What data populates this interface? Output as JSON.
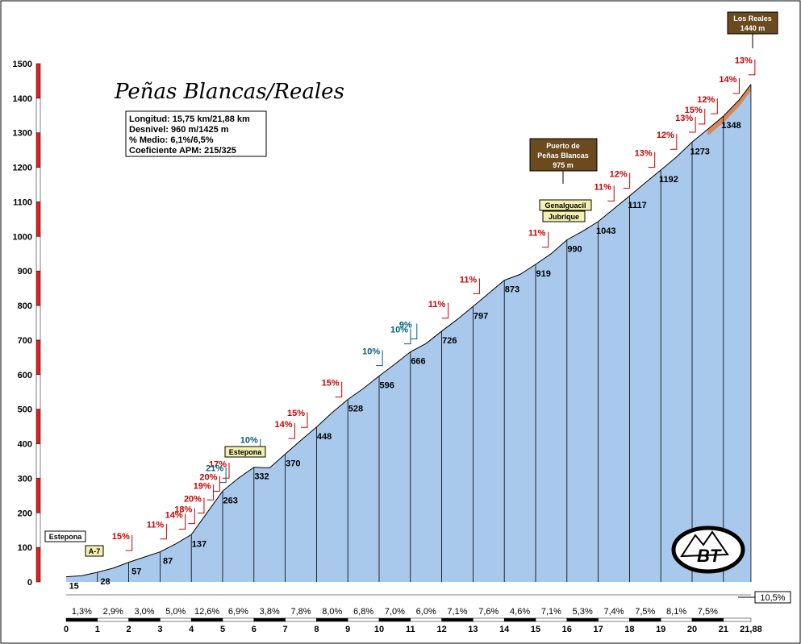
{
  "chart_data": {
    "type": "area",
    "title": "Peñas Blancas/Reales",
    "info": [
      "Longitud: 15,75 km/21,88 km",
      "Desnivel: 960 m/1425 m",
      "% Medio: 6,1%/6,5%",
      "Coeficiente APM: 215/325"
    ],
    "xlim": [
      0,
      21.88
    ],
    "ylim": [
      0,
      1500
    ],
    "x_ticks": [
      "0",
      "1",
      "2",
      "3",
      "4",
      "5",
      "6",
      "7",
      "8",
      "9",
      "10",
      "11",
      "12",
      "13",
      "14",
      "15",
      "16",
      "17",
      "18",
      "19",
      "20",
      "21"
    ],
    "x_end_label": "21,88",
    "y_ticks": [
      "0",
      "100",
      "200",
      "300",
      "400",
      "500",
      "600",
      "700",
      "800",
      "900",
      "1000",
      "1100",
      "1200",
      "1300",
      "1400",
      "1500"
    ],
    "profile": [
      [
        0,
        15
      ],
      [
        0.5,
        18
      ],
      [
        1,
        28
      ],
      [
        1.5,
        40
      ],
      [
        2,
        57
      ],
      [
        2.5,
        72
      ],
      [
        3,
        87
      ],
      [
        3.5,
        110
      ],
      [
        4,
        137
      ],
      [
        4.5,
        200
      ],
      [
        5,
        263
      ],
      [
        5.5,
        300
      ],
      [
        6,
        332
      ],
      [
        6.5,
        330
      ],
      [
        7,
        370
      ],
      [
        7.5,
        410
      ],
      [
        8,
        448
      ],
      [
        8.5,
        490
      ],
      [
        9,
        528
      ],
      [
        9.5,
        560
      ],
      [
        10,
        596
      ],
      [
        10.5,
        630
      ],
      [
        11,
        666
      ],
      [
        11.5,
        690
      ],
      [
        12,
        726
      ],
      [
        12.5,
        760
      ],
      [
        13,
        797
      ],
      [
        13.5,
        835
      ],
      [
        14,
        873
      ],
      [
        14.5,
        890
      ],
      [
        15,
        919
      ],
      [
        15.5,
        950
      ],
      [
        16,
        990
      ],
      [
        16.5,
        1015
      ],
      [
        17,
        1043
      ],
      [
        17.5,
        1080
      ],
      [
        18,
        1117
      ],
      [
        18.5,
        1155
      ],
      [
        19,
        1192
      ],
      [
        19.5,
        1230
      ],
      [
        20,
        1273
      ],
      [
        20.5,
        1310
      ],
      [
        21,
        1348
      ],
      [
        21.5,
        1395
      ],
      [
        21.88,
        1440
      ]
    ],
    "km_altitudes": [
      {
        "x": 0.25,
        "label": "15"
      },
      {
        "x": 1.25,
        "label": "28"
      },
      {
        "x": 2.25,
        "label": "57"
      },
      {
        "x": 3.25,
        "label": "87"
      },
      {
        "x": 4.25,
        "label": "137"
      },
      {
        "x": 5.25,
        "label": "263"
      },
      {
        "x": 6.25,
        "label": "332"
      },
      {
        "x": 7.25,
        "label": "370"
      },
      {
        "x": 8.25,
        "label": "448"
      },
      {
        "x": 9.25,
        "label": "528"
      },
      {
        "x": 10.25,
        "label": "596"
      },
      {
        "x": 11.25,
        "label": "666"
      },
      {
        "x": 12.25,
        "label": "726"
      },
      {
        "x": 13.25,
        "label": "797"
      },
      {
        "x": 14.25,
        "label": "873"
      },
      {
        "x": 15.25,
        "label": "919"
      },
      {
        "x": 16.25,
        "label": "990"
      },
      {
        "x": 17.25,
        "label": "1043"
      },
      {
        "x": 18.25,
        "label": "1117"
      },
      {
        "x": 19.25,
        "label": "1192"
      },
      {
        "x": 20.25,
        "label": "1273"
      },
      {
        "x": 21.25,
        "label": "1348"
      }
    ],
    "segment_gradients": [
      "1,3%",
      "2,9%",
      "3,0%",
      "5,0%",
      "12,6%",
      "6,9%",
      "3,8%",
      "7,8%",
      "8,0%",
      "6,8%",
      "7,0%",
      "6,0%",
      "7,1%",
      "7,6%",
      "4,6%",
      "7,1%",
      "5,3%",
      "7,4%",
      "7,5%",
      "8,1%",
      "7,5%"
    ],
    "last_segment_gradient": "10,5%",
    "ramp_labels": [
      {
        "x": 1.9,
        "y": 15,
        "label": "15%",
        "color": "#cc0000"
      },
      {
        "x": 3.0,
        "y": 11,
        "label": "11%",
        "color": "#cc0000"
      },
      {
        "x": 3.6,
        "y": 14,
        "label": "14%",
        "color": "#cc0000"
      },
      {
        "x": 3.9,
        "y": 18,
        "label": "18%",
        "color": "#cc0000"
      },
      {
        "x": 4.2,
        "y": 20,
        "label": "20%",
        "color": "#cc0000"
      },
      {
        "x": 4.5,
        "y": 19,
        "label": "19%",
        "color": "#cc0000"
      },
      {
        "x": 4.7,
        "y": 20,
        "label": "20%",
        "color": "#cc0000"
      },
      {
        "x": 5.0,
        "y": 17,
        "label": "17%",
        "color": "#cc0000"
      },
      {
        "x": 4.9,
        "y": 21,
        "label": "21%",
        "color": "#006080"
      },
      {
        "x": 6.0,
        "y": 10,
        "label": "10%",
        "color": "#006080"
      },
      {
        "x": 7.1,
        "y": 14,
        "label": "14%",
        "color": "#cc0000"
      },
      {
        "x": 7.5,
        "y": 15,
        "label": "15%",
        "color": "#cc0000"
      },
      {
        "x": 8.6,
        "y": 15,
        "label": "15%",
        "color": "#cc0000"
      },
      {
        "x": 9.9,
        "y": 10,
        "label": "10%",
        "color": "#006080"
      },
      {
        "x": 11.0,
        "y": 9,
        "label": "9%",
        "color": "#006080"
      },
      {
        "x": 10.8,
        "y": 10,
        "label": "10%",
        "color": "#006080"
      },
      {
        "x": 12.0,
        "y": 11,
        "label": "11%",
        "color": "#cc0000"
      },
      {
        "x": 13.0,
        "y": 11,
        "label": "11%",
        "color": "#cc0000"
      },
      {
        "x": 15.2,
        "y": 11,
        "label": "11%",
        "color": "#cc0000"
      },
      {
        "x": 17.3,
        "y": 11,
        "label": "11%",
        "color": "#cc0000"
      },
      {
        "x": 17.8,
        "y": 12,
        "label": "12%",
        "color": "#cc0000"
      },
      {
        "x": 18.6,
        "y": 13,
        "label": "13%",
        "color": "#cc0000"
      },
      {
        "x": 19.3,
        "y": 12,
        "label": "12%",
        "color": "#cc0000"
      },
      {
        "x": 19.9,
        "y": 13,
        "label": "13%",
        "color": "#cc0000"
      },
      {
        "x": 20.2,
        "y": 15,
        "label": "15%",
        "color": "#cc0000"
      },
      {
        "x": 20.6,
        "y": 12,
        "label": "12%",
        "color": "#cc0000"
      },
      {
        "x": 21.3,
        "y": 14,
        "label": "14%",
        "color": "#cc0000"
      },
      {
        "x": 21.8,
        "y": 13,
        "label": "13%",
        "color": "#cc0000"
      }
    ],
    "signposts": {
      "estepona_start": "Estepona",
      "a7": "A-7",
      "estepona_mid": "Estepona",
      "genalguacil": "Genalguacil",
      "jubrique": "Jubrique",
      "puerto": [
        "Puerto de",
        "Peñas Blancas",
        "975 m"
      ],
      "summit": [
        "Los Reales",
        "1440 m"
      ]
    },
    "logo_text": "BT",
    "colors": {
      "fill": "#a8c8ec",
      "summit_fill": "#d88858",
      "axis_red": "#e02020",
      "red_pct": "#cc0000",
      "teal_pct": "#006080",
      "sign_brown": "#6b4a1e",
      "sign_yellow": "#f3f0b0"
    }
  }
}
